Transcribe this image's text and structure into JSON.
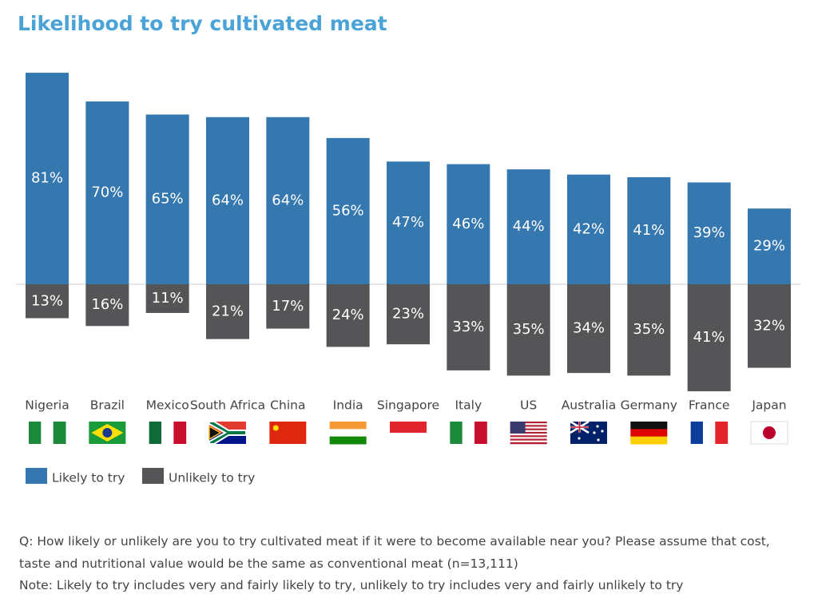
{
  "chart_data": {
    "type": "diverging-bar",
    "title": "Likelihood to try cultivated meat",
    "categories": [
      "Nigeria",
      "Brazil",
      "Mexico",
      "South Africa",
      "China",
      "India",
      "Singapore",
      "Italy",
      "US",
      "Australia",
      "Germany",
      "France",
      "Japan"
    ],
    "series": [
      {
        "name": "Likely to try",
        "color": "#3578b0",
        "values": [
          81,
          70,
          65,
          64,
          64,
          56,
          47,
          46,
          44,
          42,
          41,
          39,
          29
        ],
        "value_labels": [
          "81%",
          "70%",
          "65%",
          "64%",
          "64%",
          "56%",
          "47%",
          "46%",
          "44%",
          "42%",
          "41%",
          "39%",
          "29%"
        ]
      },
      {
        "name": "Unlikely to try",
        "color": "#555558",
        "values": [
          13,
          16,
          11,
          21,
          17,
          24,
          23,
          33,
          35,
          34,
          35,
          41,
          32
        ],
        "value_labels": [
          "13%",
          "16%",
          "11%",
          "21%",
          "17%",
          "24%",
          "23%",
          "33%",
          "35%",
          "34%",
          "35%",
          "41%",
          "32%"
        ]
      }
    ],
    "notes": [
      "Q: How likely or unlikely are you to try cultivated meat if it were to become available near you? Please assume that cost, taste and nutritional value would be the same as conventional meat (n=13,111)",
      "Note: Likely to try includes very and fairly likely to try, unlikely to try includes very and fairly unlikely to try"
    ]
  }
}
